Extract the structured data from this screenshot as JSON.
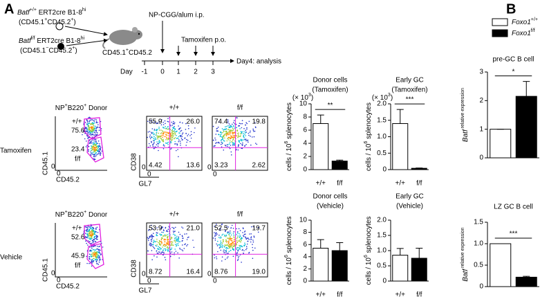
{
  "panel_labels": [
    "A",
    "B"
  ],
  "schematic": {
    "donor1_line1": [
      "Batf",
      "+/+",
      " ERT2cre B1-8",
      "hi"
    ],
    "donor1_line2": [
      "(CD45.1",
      "+",
      "CD45.2",
      "+",
      ")"
    ],
    "donor2_line1": [
      "Batf",
      "f/f",
      " ERT2cre B1-8",
      "hi"
    ],
    "donor2_line2": [
      "(CD45.1",
      "−",
      "CD45.2",
      "+",
      ")"
    ],
    "recipient": [
      "CD45.1",
      "+",
      "CD45.2"
    ],
    "immunization": "NP-CGG/alum i.p.",
    "treatment": "Tamoxifen p.o.",
    "day_label": "Day",
    "days": [
      "-1",
      "0",
      "1",
      "2",
      "3"
    ],
    "endpoint": "Day4: analysis"
  },
  "flow": {
    "donor_title": [
      "NP",
      "+",
      "B220",
      "+",
      " Donor"
    ],
    "x_axis_donor": "CD45.2",
    "y_axis_donor": "CD45.1",
    "x_axis_gc": "GL7",
    "y_axis_gc": "CD38",
    "axis_zero": "0",
    "rows": [
      {
        "label": "Tamoxifen",
        "gates": [
          {
            "label": "+/+",
            "pct": "75.6"
          },
          {
            "label": "f/f",
            "pct": "23.4"
          }
        ],
        "plots": [
          {
            "title": "+/+",
            "quadrants": [
              "55.9",
              "26.0",
              "4.42",
              "13.6"
            ]
          },
          {
            "title": "f/f",
            "quadrants": [
              "74.4",
              "19.8",
              "3.23",
              "2.62"
            ]
          }
        ]
      },
      {
        "label": "Vehicle",
        "gates": [
          {
            "label": "+/+",
            "pct": "52.6"
          },
          {
            "label": "f/f",
            "pct": "45.9"
          }
        ],
        "plots": [
          {
            "title": "+/+",
            "quadrants": [
              "53.9",
              "21.0",
              "8.72",
              "16.4"
            ]
          },
          {
            "title": "f/f",
            "quadrants": [
              "52.5",
              "19.7",
              "8.76",
              "19.0"
            ]
          }
        ]
      }
    ]
  },
  "legend": [
    [
      "Foxo1",
      "+/+"
    ],
    [
      "Foxo1",
      "f/f"
    ]
  ],
  "chart_data": [
    {
      "type": "bar",
      "title": [
        "Donor cells",
        "(Tamoxifen)"
      ],
      "scale_label": [
        "(× 10",
        "3",
        ")"
      ],
      "ylabel": [
        "cells / 10",
        "6",
        " splenocytes"
      ],
      "categories": [
        "+/+",
        "f/f"
      ],
      "values": [
        7.0,
        1.3
      ],
      "errors": [
        1.3,
        0.15
      ],
      "colors": [
        "#ffffff",
        "#000000"
      ],
      "ylim": [
        0,
        10
      ],
      "yticks": [
        0,
        2,
        4,
        6,
        8,
        10
      ],
      "significance": "**"
    },
    {
      "type": "bar",
      "title": [
        "Early GC",
        "(Tamoxifen)"
      ],
      "scale_label": [
        "(× 10",
        "3",
        ")"
      ],
      "ylabel": [
        "cells / 10",
        "6",
        " splenocytes"
      ],
      "categories": [
        "+/+",
        "f/f"
      ],
      "values": [
        1.4,
        0.04
      ],
      "errors": [
        0.43,
        0.01
      ],
      "colors": [
        "#ffffff",
        "#000000"
      ],
      "ylim": [
        0,
        2
      ],
      "yticks": [
        0,
        0.5,
        {
          "value": 1,
          "label": "1.0"
        },
        1.5,
        {
          "value": 2,
          "label": "2.0"
        }
      ],
      "significance": "***"
    },
    {
      "type": "bar",
      "title": [
        "Donor cells",
        "(Vehicle)"
      ],
      "ylabel": [
        "cells / 10",
        "6",
        " splenocytes"
      ],
      "categories": [
        "+/+",
        "f/f"
      ],
      "values": [
        5.4,
        5.0
      ],
      "errors": [
        1.4,
        1.3
      ],
      "colors": [
        "#ffffff",
        "#000000"
      ],
      "ylim": [
        0,
        10
      ],
      "yticks": [
        0,
        2,
        4,
        6,
        8,
        10
      ]
    },
    {
      "type": "bar",
      "title": [
        "Early GC",
        "(Vehicle)"
      ],
      "ylabel": [
        "cells / 10",
        "6",
        " splenocytes"
      ],
      "categories": [
        "+/+",
        "f/f"
      ],
      "values": [
        0.85,
        0.75
      ],
      "errors": [
        0.22,
        0.33
      ],
      "colors": [
        "#ffffff",
        "#000000"
      ],
      "ylim": [
        0,
        2
      ],
      "yticks": [
        0,
        0.5,
        {
          "value": 1,
          "label": "1.0"
        },
        1.5,
        {
          "value": 2,
          "label": "2.0"
        }
      ]
    },
    {
      "type": "bar",
      "title": [
        "pre-GC B cell"
      ],
      "ylabel": [
        "Batf",
        " relative expression"
      ],
      "values": [
        1.0,
        2.15
      ],
      "errors": [
        0,
        0.52
      ],
      "colors": [
        "#ffffff",
        "#000000"
      ],
      "ylim": [
        0,
        3
      ],
      "yticks": [
        0,
        1,
        2,
        3
      ],
      "significance": "*"
    },
    {
      "type": "bar",
      "title": [
        "LZ GC B cell"
      ],
      "ylabel": [
        "Batf",
        " relative expression"
      ],
      "values": [
        1.0,
        0.22
      ],
      "errors": [
        0,
        0.02
      ],
      "colors": [
        "#ffffff",
        "#000000"
      ],
      "ylim": [
        0,
        1.5
      ],
      "yticks": [
        0,
        0.5,
        {
          "value": 1,
          "label": "1.0"
        },
        1.5
      ],
      "significance": "***"
    }
  ]
}
